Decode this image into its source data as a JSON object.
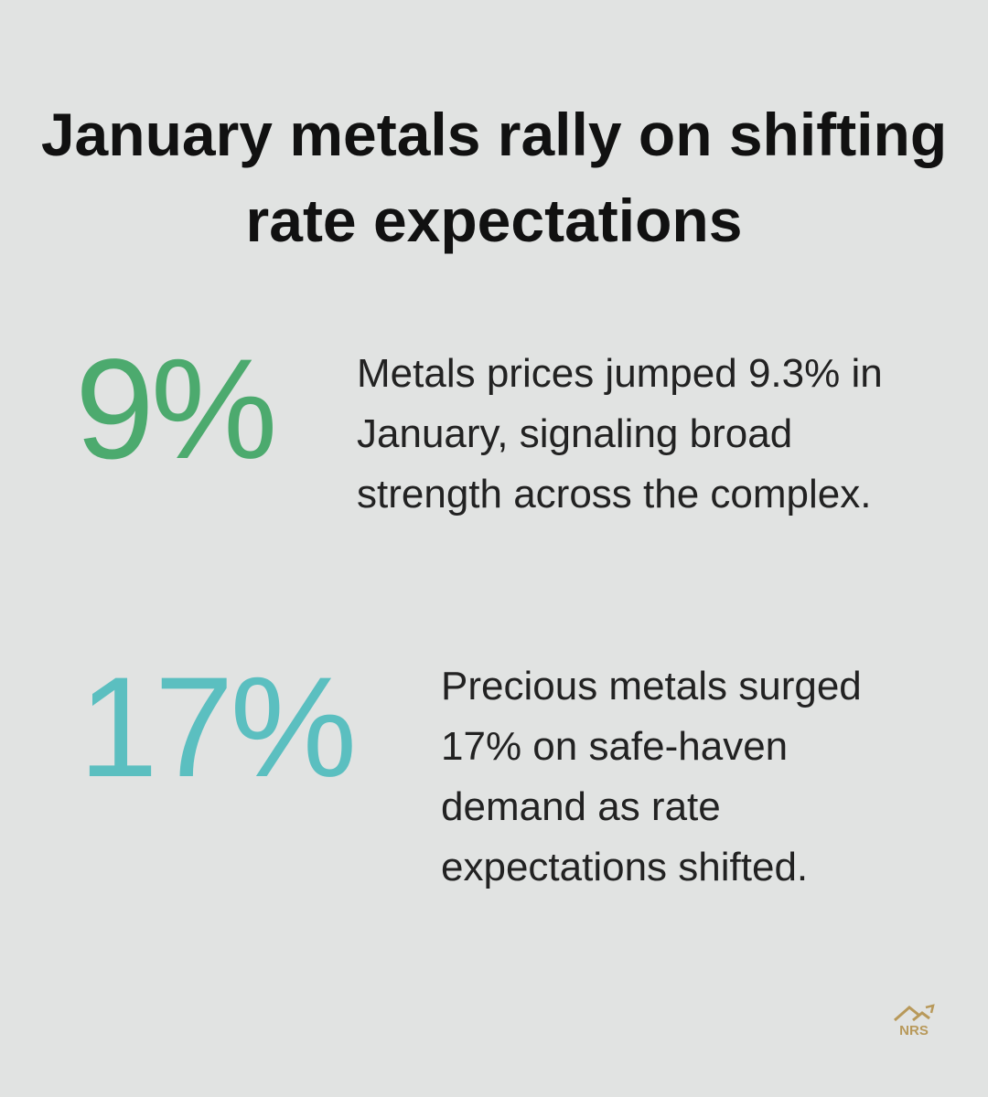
{
  "title": "January metals rally on shifting rate expectations",
  "stats": [
    {
      "value": "9%",
      "description": "Metals prices jumped 9.3% in January, signaling broad strength across the complex."
    },
    {
      "value": "17%",
      "description": "Precious metals surged 17% on safe-haven demand as rate expectations shifted."
    }
  ],
  "logo": {
    "text": "NRS"
  }
}
